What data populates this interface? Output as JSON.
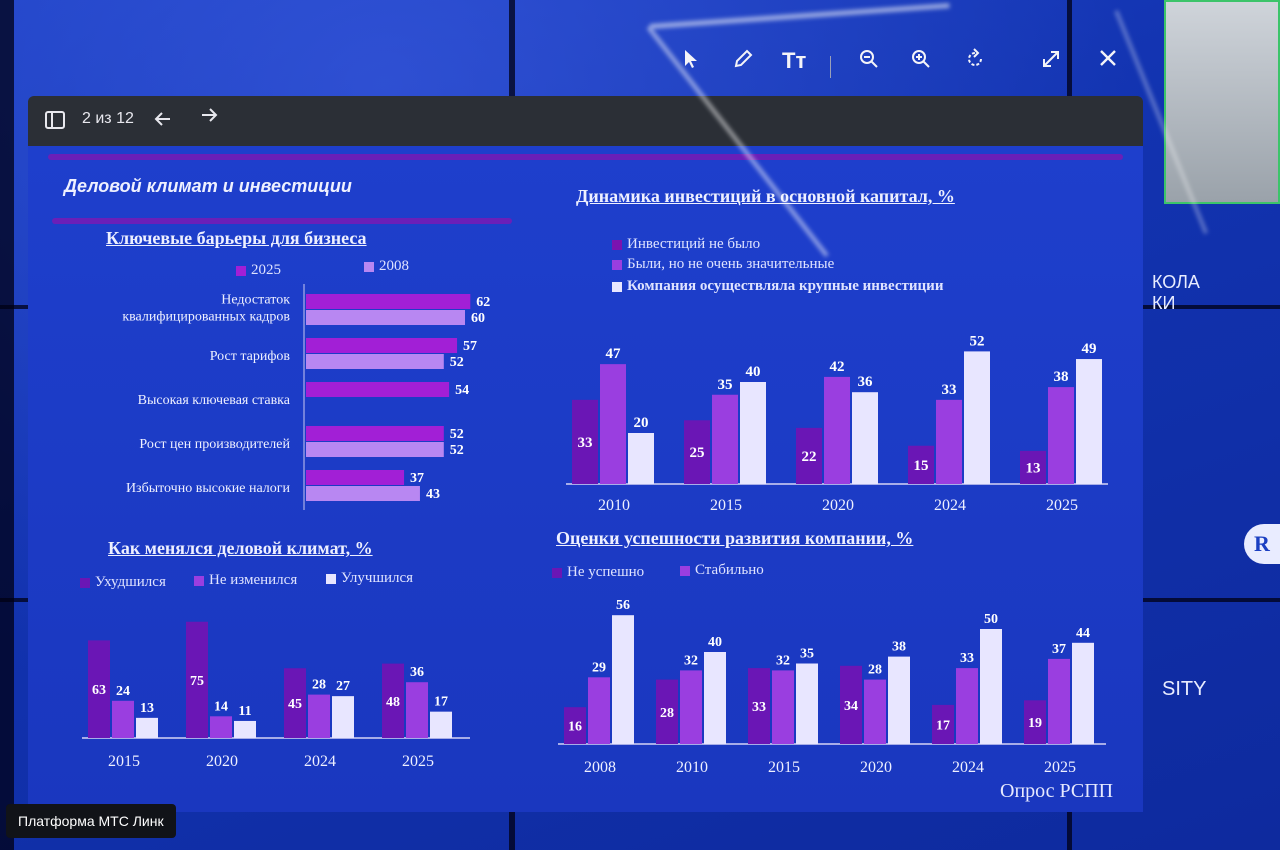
{
  "toolbar": {
    "page_counter": "2 из 12",
    "icons": [
      "sidebar-icon",
      "arrow-left-icon",
      "arrow-right-icon"
    ]
  },
  "top_tools": {
    "text_tool_label": "Тт",
    "icons": [
      "cursor-icon",
      "pen-icon",
      "text-icon",
      "zoom-out-icon",
      "zoom-in-icon",
      "rotate-icon",
      "expand-icon",
      "close-icon"
    ]
  },
  "slide": {
    "section_title": "Деловой климат и инвестиции",
    "source": "Опрос РСПП"
  },
  "side": {
    "text_top_1": "КОЛА",
    "text_top_2": "КИ",
    "text_mid": "SITY",
    "badge": "R"
  },
  "platform_label": "Платформа МТС Линк",
  "colors": {
    "dark_purple": "#6a16b5",
    "purple": "#9a3ee0",
    "light": "#e8e6ff",
    "bar_barrier_2025": "#a21fd6",
    "bar_barrier_2008": "#b887f2"
  },
  "chart_data": [
    {
      "type": "bar",
      "orientation": "horizontal",
      "title": "Ключевые барьеры для бизнеса",
      "categories": [
        "Недостаток квалифицированных кадров",
        "Рост тарифов",
        "Высокая ключевая ставка",
        "Рост цен производителей",
        "Избыточно высокие налоги"
      ],
      "category_lines": [
        [
          "Недостаток",
          "квалифицированных кадров"
        ],
        [
          "Рост тарифов"
        ],
        [
          "Высокая ключевая ставка"
        ],
        [
          "Рост цен производителей"
        ],
        [
          "Избыточно высокие налоги"
        ]
      ],
      "series": [
        {
          "name": "2025",
          "values": [
            62,
            57,
            54,
            52,
            37
          ]
        },
        {
          "name": "2008",
          "values": [
            60,
            52,
            null,
            52,
            43
          ]
        }
      ],
      "legend": "top"
    },
    {
      "type": "bar",
      "title": "Динамика инвестиций в основной капитал, %",
      "categories": [
        "2010",
        "2015",
        "2020",
        "2024",
        "2025"
      ],
      "series": [
        {
          "name": "Инвестиций не было",
          "values": [
            33,
            25,
            22,
            15,
            13
          ]
        },
        {
          "name": "Были, но не очень значительные",
          "values": [
            47,
            35,
            42,
            33,
            38
          ]
        },
        {
          "name": "Компания осуществляла крупные инвестиции",
          "values": [
            20,
            40,
            36,
            52,
            49
          ]
        }
      ],
      "legend": "top-left"
    },
    {
      "type": "bar",
      "title": "Как менялся деловой климат, %",
      "categories": [
        "2015",
        "2020",
        "2024",
        "2025"
      ],
      "series": [
        {
          "name": "Ухудшился",
          "values": [
            63,
            75,
            45,
            48
          ]
        },
        {
          "name": "Не изменился",
          "values": [
            24,
            14,
            28,
            36
          ]
        },
        {
          "name": "Улучшился",
          "values": [
            13,
            11,
            27,
            17
          ]
        }
      ],
      "legend": "top"
    },
    {
      "type": "bar",
      "title": "Оценки успешности развития компании, %",
      "categories": [
        "2008",
        "2010",
        "2015",
        "2020",
        "2024",
        "2025"
      ],
      "series": [
        {
          "name": "Не успешно",
          "values": [
            16,
            28,
            33,
            34,
            17,
            19
          ]
        },
        {
          "name": "Стабильно",
          "values": [
            29,
            32,
            32,
            28,
            33,
            37
          ]
        },
        {
          "name": "",
          "values": [
            56,
            40,
            35,
            38,
            50,
            44
          ]
        }
      ],
      "legend": "top-left"
    }
  ]
}
